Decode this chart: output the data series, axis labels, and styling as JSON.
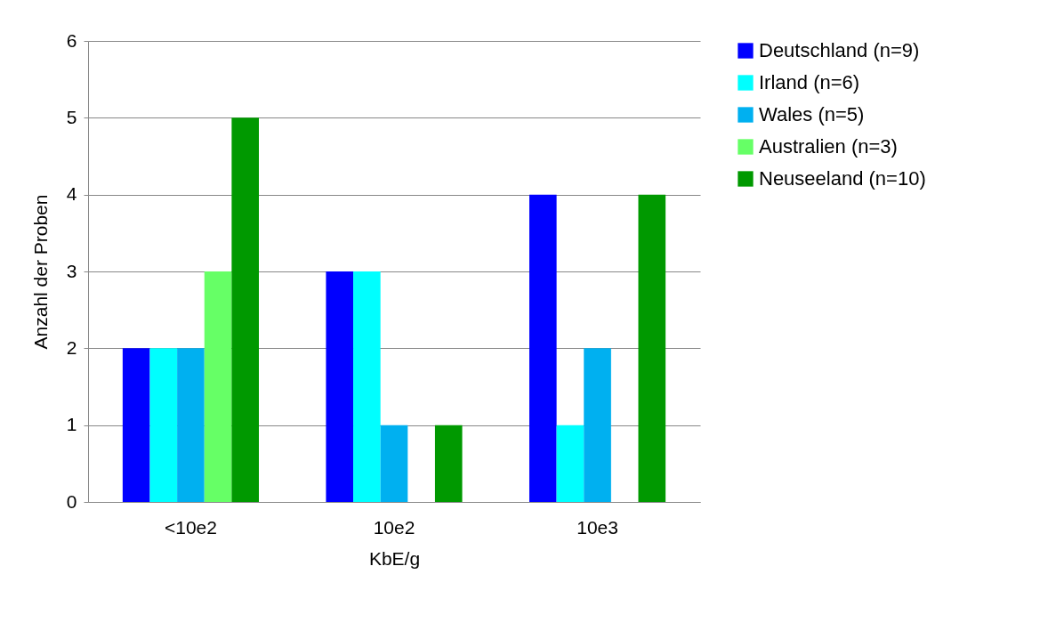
{
  "chart_data": {
    "type": "bar",
    "xlabel": "KbE/g",
    "ylabel": "Anzahl der Proben",
    "categories": [
      "<10e2",
      "10e2",
      "10e3"
    ],
    "series": [
      {
        "name": "Deutschland (n=9)",
        "color": "#0000ff",
        "values": [
          2,
          3,
          4
        ]
      },
      {
        "name": "Irland (n=6)",
        "color": "#00ffff",
        "values": [
          2,
          3,
          1
        ]
      },
      {
        "name": "Wales (n=5)",
        "color": "#00b0f0",
        "values": [
          2,
          1,
          2
        ]
      },
      {
        "name": "Australien (n=3)",
        "color": "#66ff66",
        "values": [
          3,
          0,
          0
        ]
      },
      {
        "name": "Neuseeland (n=10)",
        "color": "#009900",
        "values": [
          5,
          1,
          4
        ]
      }
    ],
    "ylim": [
      0,
      6
    ],
    "yticks": [
      0,
      1,
      2,
      3,
      4,
      5,
      6
    ],
    "grid": "y",
    "legend": "right"
  }
}
